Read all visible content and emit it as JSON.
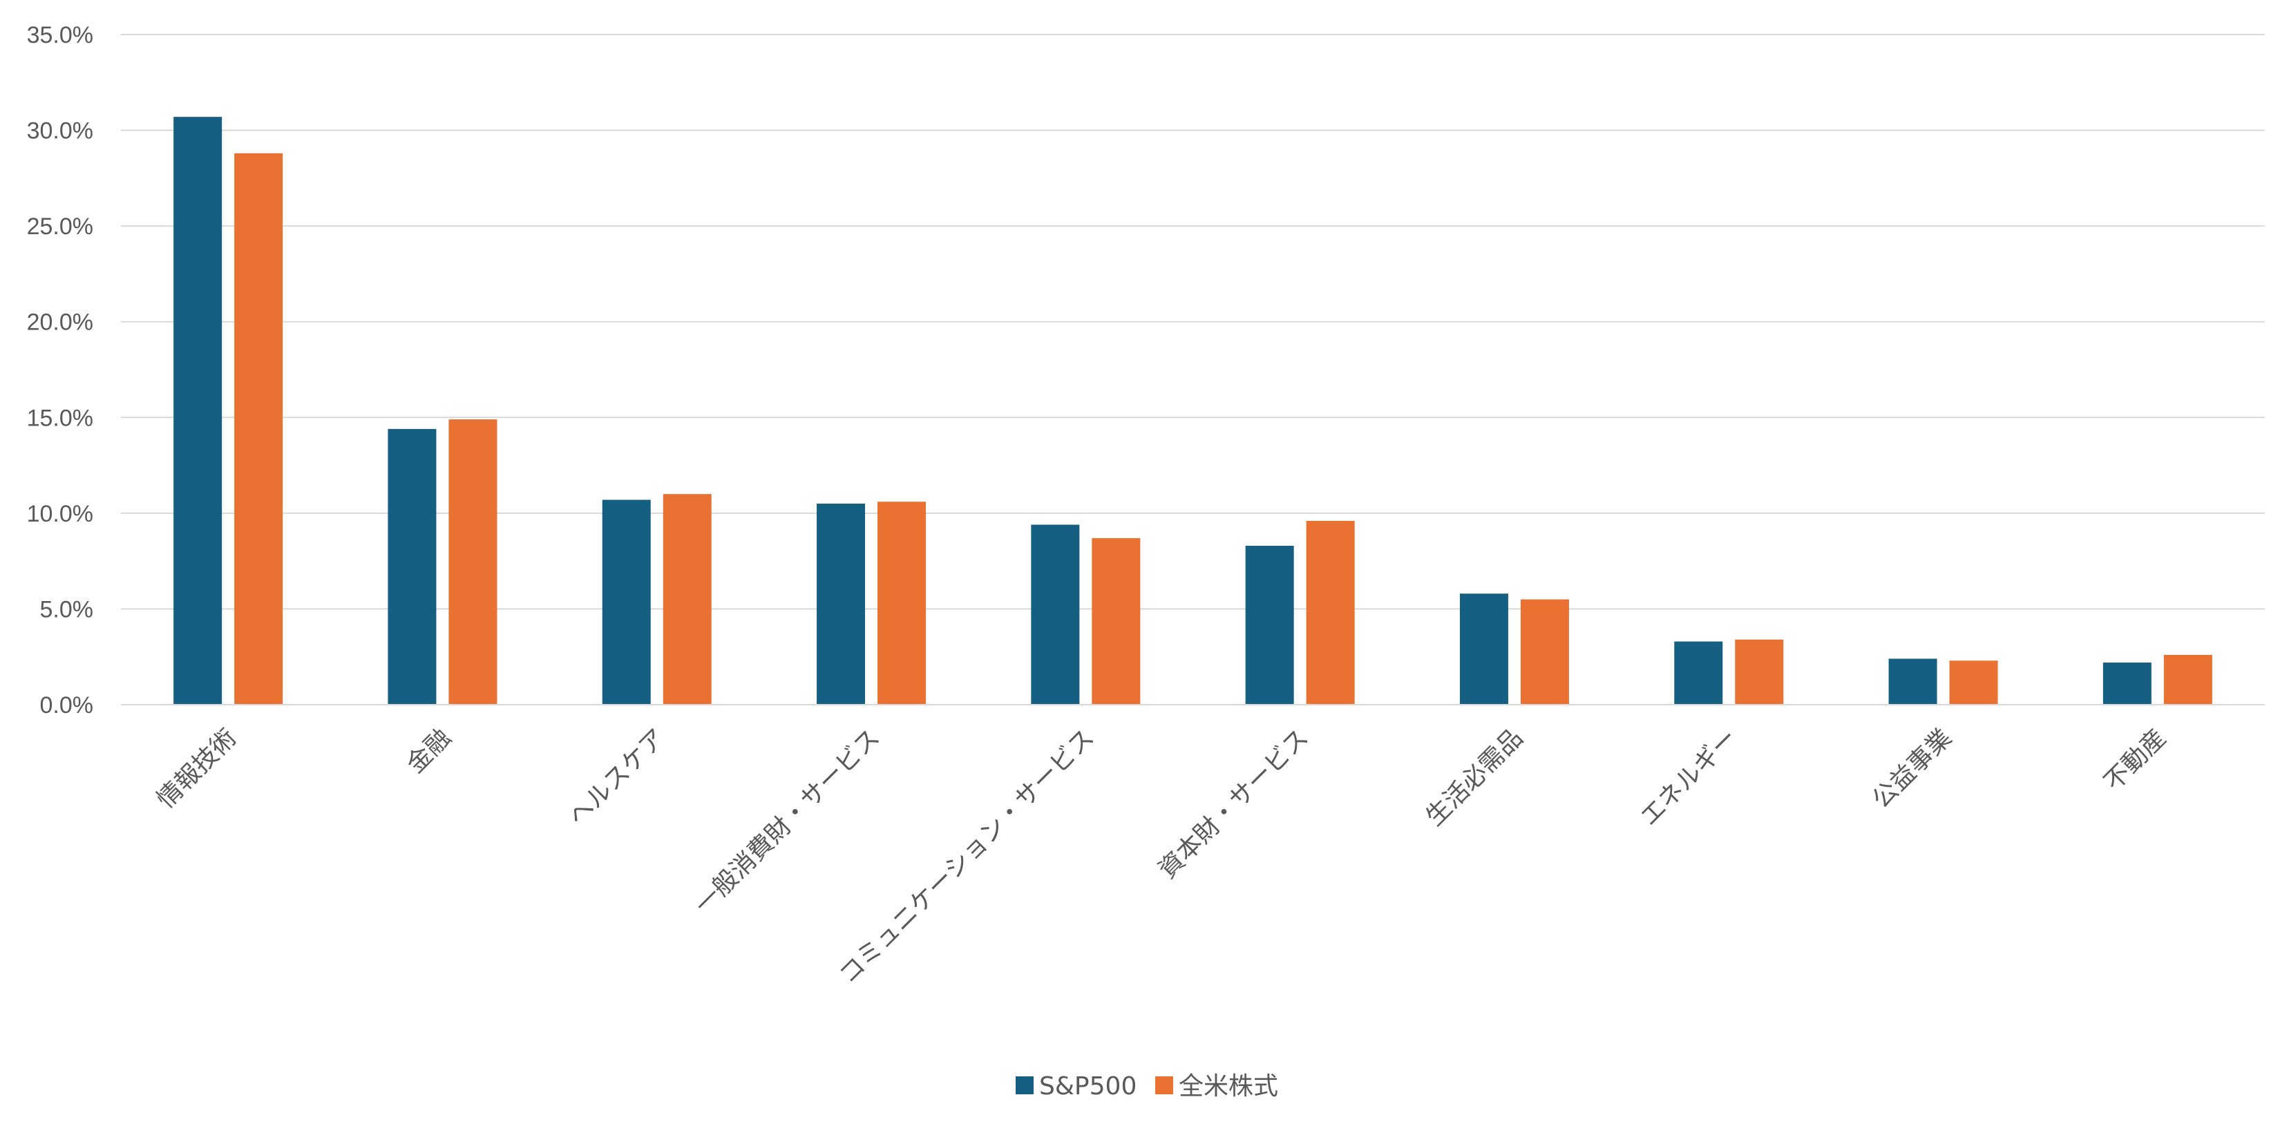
{
  "chart_data": {
    "type": "bar",
    "title": "",
    "xlabel": "",
    "ylabel": "",
    "categories": [
      "情報技術",
      "金融",
      "ヘルスケア",
      "一般消費財・サービス",
      "コミュニケーション・サービス",
      "資本財・サービス",
      "生活必需品",
      "エネルギー",
      "公益事業",
      "不動産"
    ],
    "series": [
      {
        "name": "S&P500",
        "color": "#156082",
        "values": [
          30.7,
          14.4,
          10.7,
          10.5,
          9.4,
          8.3,
          5.8,
          3.3,
          2.4,
          2.2
        ]
      },
      {
        "name": "全米株式",
        "color": "#E97132",
        "values": [
          28.8,
          14.9,
          11.0,
          10.6,
          8.7,
          9.6,
          5.5,
          3.4,
          2.3,
          2.6
        ]
      }
    ],
    "ylim": [
      0,
      35
    ],
    "ytick_step": 5,
    "ytick_labels": [
      "0.0%",
      "5.0%",
      "10.0%",
      "15.0%",
      "20.0%",
      "25.0%",
      "30.0%",
      "35.0%"
    ],
    "grid": true,
    "gridline_color": "#D9D9D9",
    "legend_position": "bottom"
  }
}
